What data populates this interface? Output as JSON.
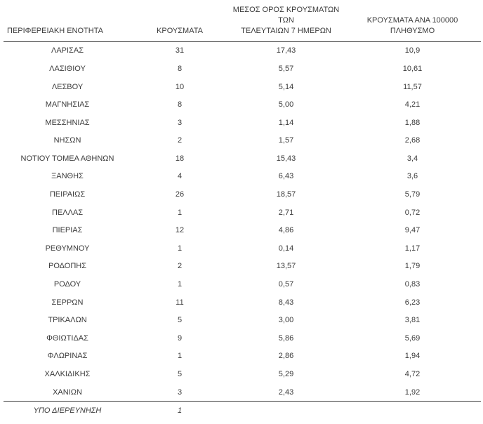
{
  "headers": {
    "col1": "ΠΕΡΙΦΕΡΕΙΑΚΗ ΕΝΟΤΗΤΑ",
    "col2": "ΚΡΟΥΣΜΑΤΑ",
    "col3_line1": "ΜΕΣΟΣ ΟΡΟΣ ΚΡΟΥΣΜΑΤΩΝ ΤΩΝ",
    "col3_line2": "ΤΕΛΕΥΤΑΙΩΝ 7 ΗΜΕΡΩΝ",
    "col4": "ΚΡΟΥΣΜΑΤΑ ΑΝΑ 100000 ΠΛΗΘΥΣΜΟ"
  },
  "chart_data": {
    "type": "table",
    "columns": [
      "ΠΕΡΙΦΕΡΕΙΑΚΗ ΕΝΟΤΗΤΑ",
      "ΚΡΟΥΣΜΑΤΑ",
      "ΜΕΣΟΣ ΟΡΟΣ ΚΡΟΥΣΜΑΤΩΝ ΤΩΝ ΤΕΛΕΥΤΑΙΩΝ 7 ΗΜΕΡΩΝ",
      "ΚΡΟΥΣΜΑΤΑ ΑΝΑ 100000 ΠΛΗΘΥΣΜΟ"
    ],
    "rows": [
      [
        "ΛΑΡΙΣΑΣ",
        "31",
        "17,43",
        "10,9"
      ],
      [
        "ΛΑΣΙΘΙΟΥ",
        "8",
        "5,57",
        "10,61"
      ],
      [
        "ΛΕΣΒΟΥ",
        "10",
        "5,14",
        "11,57"
      ],
      [
        "ΜΑΓΝΗΣΙΑΣ",
        "8",
        "5,00",
        "4,21"
      ],
      [
        "ΜΕΣΣΗΝΙΑΣ",
        "3",
        "1,14",
        "1,88"
      ],
      [
        "ΝΗΣΩΝ",
        "2",
        "1,57",
        "2,68"
      ],
      [
        "ΝΟΤΙΟΥ ΤΟΜΕΑ ΑΘΗΝΩΝ",
        "18",
        "15,43",
        "3,4"
      ],
      [
        "ΞΑΝΘΗΣ",
        "4",
        "6,43",
        "3,6"
      ],
      [
        "ΠΕΙΡΑΙΩΣ",
        "26",
        "18,57",
        "5,79"
      ],
      [
        "ΠΕΛΛΑΣ",
        "1",
        "2,71",
        "0,72"
      ],
      [
        "ΠΙΕΡΙΑΣ",
        "12",
        "4,86",
        "9,47"
      ],
      [
        "ΡΕΘΥΜΝΟΥ",
        "1",
        "0,14",
        "1,17"
      ],
      [
        "ΡΟΔΟΠΗΣ",
        "2",
        "13,57",
        "1,79"
      ],
      [
        "ΡΟΔΟΥ",
        "1",
        "0,57",
        "0,83"
      ],
      [
        "ΣΕΡΡΩΝ",
        "11",
        "8,43",
        "6,23"
      ],
      [
        "ΤΡΙΚΑΛΩΝ",
        "5",
        "3,00",
        "3,81"
      ],
      [
        "ΦΘΙΩΤΙΔΑΣ",
        "9",
        "5,86",
        "5,69"
      ],
      [
        "ΦΛΩΡΙΝΑΣ",
        "1",
        "2,86",
        "1,94"
      ],
      [
        "ΧΑΛΚΙΔΙΚΗΣ",
        "5",
        "5,29",
        "4,72"
      ],
      [
        "ΧΑΝΙΩΝ",
        "3",
        "2,43",
        "1,92"
      ]
    ],
    "footer_row": [
      "ΥΠΟ ΔΙΕΡΕΥΝΗΣΗ",
      "1",
      "",
      ""
    ]
  }
}
